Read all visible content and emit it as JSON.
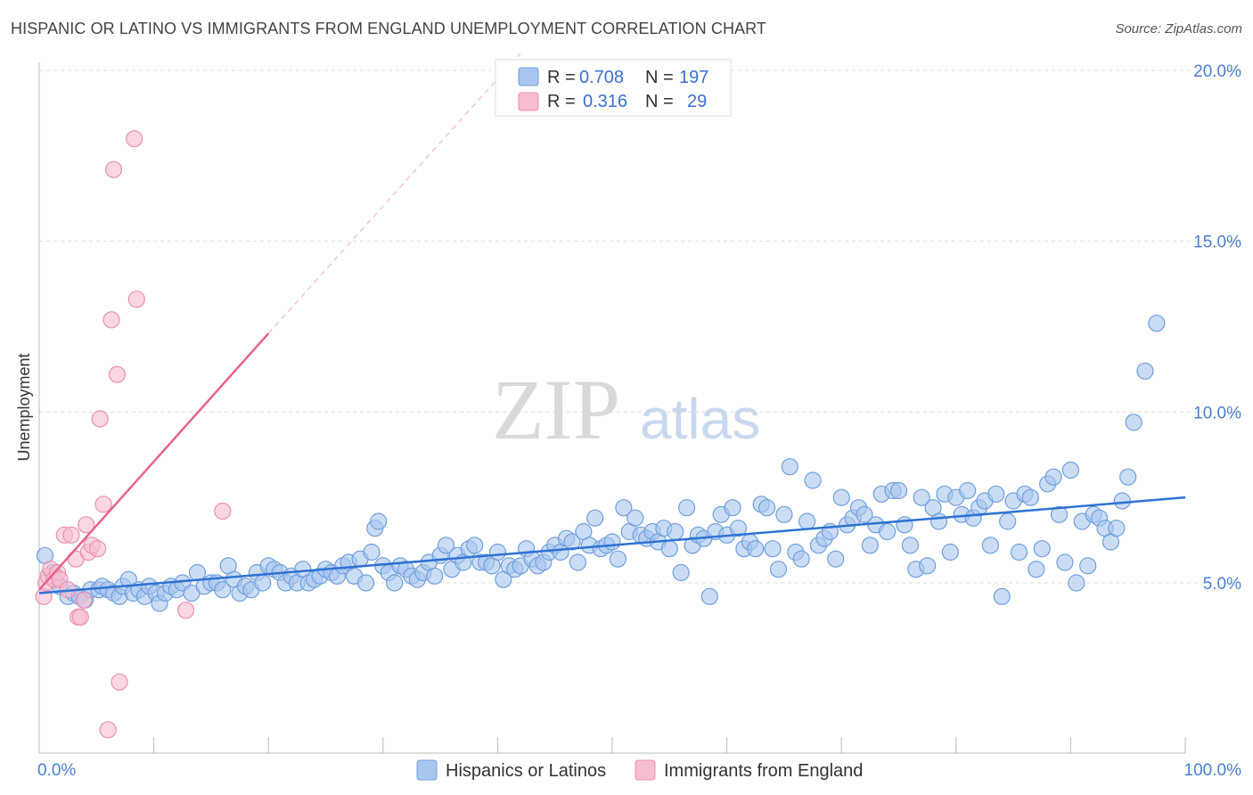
{
  "title": "HISPANIC OR LATINO VS IMMIGRANTS FROM ENGLAND UNEMPLOYMENT CORRELATION CHART",
  "source": "Source: ZipAtlas.com",
  "watermark": {
    "zip": "ZIP",
    "atlas": "atlas"
  },
  "colors": {
    "blue_fill": "#a9c7ee",
    "blue_stroke": "#6f9fdc",
    "blue_line": "#2d72d2",
    "pink_fill": "#f6bcd0",
    "pink_stroke": "#ea8fb0",
    "pink_line": "#e8628f",
    "tick_text": "#4a7fd0",
    "grid": "#dddddd"
  },
  "legend": {
    "rows": [
      {
        "r_label": "R =",
        "r_value": "0.708",
        "n_label": "N =",
        "n_value": "197"
      },
      {
        "r_label": "R =",
        "r_value": "0.316",
        "n_label": "N =",
        "n_value": "29"
      }
    ]
  },
  "chart_data": {
    "type": "scatter",
    "title": "HISPANIC OR LATINO VS IMMIGRANTS FROM ENGLAND UNEMPLOYMENT CORRELATION CHART",
    "xlabel": "",
    "ylabel": "Unemployment",
    "x_tick_labels": [
      "0.0%",
      "100.0%"
    ],
    "y_tick_labels": [
      "5.0%",
      "10.0%",
      "15.0%",
      "20.0%"
    ],
    "y_ticks": [
      5,
      10,
      15,
      20
    ],
    "xlim": [
      0,
      100
    ],
    "ylim": [
      0,
      20.5
    ],
    "grid": true,
    "legend_position": "top-center",
    "series": [
      {
        "name": "Hispanics or Latinos",
        "R": 0.708,
        "N": 197,
        "trend": {
          "x": [
            0,
            100
          ],
          "y": [
            4.7,
            7.5
          ]
        },
        "points": [
          [
            0.5,
            5.8
          ],
          [
            1.2,
            5.3
          ],
          [
            1.8,
            4.9
          ],
          [
            2.5,
            4.6
          ],
          [
            3,
            4.7
          ],
          [
            3.5,
            4.6
          ],
          [
            4,
            4.5
          ],
          [
            4.5,
            4.8
          ],
          [
            5.2,
            4.8
          ],
          [
            5.5,
            4.9
          ],
          [
            6,
            4.8
          ],
          [
            6.5,
            4.7
          ],
          [
            7,
            4.6
          ],
          [
            7.3,
            4.9
          ],
          [
            7.8,
            5.1
          ],
          [
            8.2,
            4.7
          ],
          [
            8.7,
            4.8
          ],
          [
            9.2,
            4.6
          ],
          [
            9.6,
            4.9
          ],
          [
            10.2,
            4.7
          ],
          [
            10.5,
            4.4
          ],
          [
            11,
            4.7
          ],
          [
            11.5,
            4.9
          ],
          [
            12,
            4.8
          ],
          [
            12.5,
            5.0
          ],
          [
            13.3,
            4.7
          ],
          [
            13.8,
            5.3
          ],
          [
            14.4,
            4.9
          ],
          [
            15,
            5.0
          ],
          [
            15.5,
            5.0
          ],
          [
            16,
            4.8
          ],
          [
            16.5,
            5.5
          ],
          [
            17,
            5.1
          ],
          [
            17.5,
            4.7
          ],
          [
            18,
            4.9
          ],
          [
            18.5,
            4.8
          ],
          [
            19,
            5.3
          ],
          [
            19.5,
            5.0
          ],
          [
            20,
            5.5
          ],
          [
            20.5,
            5.4
          ],
          [
            21,
            5.3
          ],
          [
            21.5,
            5.0
          ],
          [
            22,
            5.2
          ],
          [
            22.5,
            5.0
          ],
          [
            23,
            5.4
          ],
          [
            23.5,
            5.0
          ],
          [
            24,
            5.1
          ],
          [
            24.5,
            5.2
          ],
          [
            25,
            5.4
          ],
          [
            25.5,
            5.3
          ],
          [
            26,
            5.2
          ],
          [
            26.5,
            5.5
          ],
          [
            27,
            5.6
          ],
          [
            27.5,
            5.2
          ],
          [
            28,
            5.7
          ],
          [
            28.5,
            5.0
          ],
          [
            29,
            5.9
          ],
          [
            29.3,
            6.6
          ],
          [
            29.6,
            6.8
          ],
          [
            30,
            5.5
          ],
          [
            30.5,
            5.3
          ],
          [
            31,
            5.0
          ],
          [
            31.5,
            5.5
          ],
          [
            32,
            5.4
          ],
          [
            32.5,
            5.2
          ],
          [
            33,
            5.1
          ],
          [
            33.5,
            5.3
          ],
          [
            34,
            5.6
          ],
          [
            34.5,
            5.2
          ],
          [
            35,
            5.8
          ],
          [
            35.5,
            6.1
          ],
          [
            36,
            5.4
          ],
          [
            36.5,
            5.8
          ],
          [
            37,
            5.6
          ],
          [
            37.5,
            6.0
          ],
          [
            38,
            6.1
          ],
          [
            38.5,
            5.6
          ],
          [
            39,
            5.6
          ],
          [
            39.5,
            5.5
          ],
          [
            40,
            5.9
          ],
          [
            40.5,
            5.1
          ],
          [
            41,
            5.5
          ],
          [
            41.5,
            5.4
          ],
          [
            42,
            5.5
          ],
          [
            42.5,
            6.0
          ],
          [
            43,
            5.7
          ],
          [
            43.5,
            5.5
          ],
          [
            44,
            5.6
          ],
          [
            44.5,
            5.9
          ],
          [
            45,
            6.1
          ],
          [
            45.5,
            5.9
          ],
          [
            46,
            6.3
          ],
          [
            46.5,
            6.2
          ],
          [
            47,
            5.6
          ],
          [
            47.5,
            6.5
          ],
          [
            48,
            6.1
          ],
          [
            48.5,
            6.9
          ],
          [
            49,
            6.0
          ],
          [
            49.5,
            6.1
          ],
          [
            50,
            6.2
          ],
          [
            50.5,
            5.7
          ],
          [
            51,
            7.2
          ],
          [
            51.5,
            6.5
          ],
          [
            52,
            6.9
          ],
          [
            52.5,
            6.4
          ],
          [
            53,
            6.3
          ],
          [
            53.5,
            6.5
          ],
          [
            54,
            6.2
          ],
          [
            54.5,
            6.6
          ],
          [
            55,
            6.0
          ],
          [
            55.5,
            6.5
          ],
          [
            56,
            5.3
          ],
          [
            56.5,
            7.2
          ],
          [
            57,
            6.1
          ],
          [
            57.5,
            6.4
          ],
          [
            58,
            6.3
          ],
          [
            58.5,
            4.6
          ],
          [
            59,
            6.5
          ],
          [
            59.5,
            7.0
          ],
          [
            60,
            6.4
          ],
          [
            60.5,
            7.2
          ],
          [
            61,
            6.6
          ],
          [
            61.5,
            6.0
          ],
          [
            62,
            6.2
          ],
          [
            62.5,
            6.0
          ],
          [
            63,
            7.3
          ],
          [
            63.5,
            7.2
          ],
          [
            64,
            6.0
          ],
          [
            64.5,
            5.4
          ],
          [
            65,
            7.0
          ],
          [
            65.5,
            8.4
          ],
          [
            66,
            5.9
          ],
          [
            66.5,
            5.7
          ],
          [
            67,
            6.8
          ],
          [
            67.5,
            8.0
          ],
          [
            68,
            6.1
          ],
          [
            68.5,
            6.3
          ],
          [
            69,
            6.5
          ],
          [
            69.5,
            5.7
          ],
          [
            70,
            7.5
          ],
          [
            70.5,
            6.7
          ],
          [
            71,
            6.9
          ],
          [
            71.5,
            7.2
          ],
          [
            72,
            7.0
          ],
          [
            72.5,
            6.1
          ],
          [
            73,
            6.7
          ],
          [
            73.5,
            7.6
          ],
          [
            74,
            6.5
          ],
          [
            74.5,
            7.7
          ],
          [
            75,
            7.7
          ],
          [
            75.5,
            6.7
          ],
          [
            76,
            6.1
          ],
          [
            76.5,
            5.4
          ],
          [
            77,
            7.5
          ],
          [
            77.5,
            5.5
          ],
          [
            78,
            7.2
          ],
          [
            78.5,
            6.8
          ],
          [
            79,
            7.6
          ],
          [
            79.5,
            5.9
          ],
          [
            80,
            7.5
          ],
          [
            80.5,
            7.0
          ],
          [
            81,
            7.7
          ],
          [
            81.5,
            6.9
          ],
          [
            82,
            7.2
          ],
          [
            82.5,
            7.4
          ],
          [
            83,
            6.1
          ],
          [
            83.5,
            7.6
          ],
          [
            84,
            4.6
          ],
          [
            84.5,
            6.8
          ],
          [
            85,
            7.4
          ],
          [
            85.5,
            5.9
          ],
          [
            86,
            7.6
          ],
          [
            86.5,
            7.5
          ],
          [
            87,
            5.4
          ],
          [
            87.5,
            6.0
          ],
          [
            88,
            7.9
          ],
          [
            88.5,
            8.1
          ],
          [
            89,
            7.0
          ],
          [
            89.5,
            5.6
          ],
          [
            90,
            8.3
          ],
          [
            90.5,
            5.0
          ],
          [
            91,
            6.8
          ],
          [
            91.5,
            5.5
          ],
          [
            92,
            7.0
          ],
          [
            92.5,
            6.9
          ],
          [
            93,
            6.6
          ],
          [
            93.5,
            6.2
          ],
          [
            94,
            6.6
          ],
          [
            94.5,
            7.4
          ],
          [
            95,
            8.1
          ],
          [
            95.5,
            9.7
          ],
          [
            96.5,
            11.2
          ],
          [
            97.5,
            12.6
          ]
        ]
      },
      {
        "name": "Immigrants from England",
        "R": 0.316,
        "N": 29,
        "trend": {
          "x": [
            0,
            20
          ],
          "y": [
            4.8,
            12.3
          ],
          "dashed_extension_to": [
            42,
            20.5
          ]
        },
        "points": [
          [
            0.4,
            4.6
          ],
          [
            0.6,
            5.0
          ],
          [
            0.8,
            5.2
          ],
          [
            1.0,
            5.4
          ],
          [
            1.3,
            5.1
          ],
          [
            1.6,
            5.3
          ],
          [
            1.8,
            5.1
          ],
          [
            2.2,
            6.4
          ],
          [
            2.5,
            4.8
          ],
          [
            2.8,
            6.4
          ],
          [
            3.2,
            5.7
          ],
          [
            3.4,
            4.0
          ],
          [
            3.6,
            4.0
          ],
          [
            3.9,
            4.5
          ],
          [
            4.1,
            6.7
          ],
          [
            4.3,
            5.9
          ],
          [
            4.6,
            6.1
          ],
          [
            5.1,
            6.0
          ],
          [
            5.3,
            9.8
          ],
          [
            5.6,
            7.3
          ],
          [
            6.0,
            0.7
          ],
          [
            6.3,
            12.7
          ],
          [
            6.5,
            17.1
          ],
          [
            6.8,
            11.1
          ],
          [
            7.0,
            2.1
          ],
          [
            8.3,
            18.0
          ],
          [
            8.5,
            13.3
          ],
          [
            12.8,
            4.2
          ],
          [
            16.0,
            7.1
          ]
        ]
      }
    ]
  },
  "bottom_legend": [
    "Hispanics or Latinos",
    "Immigrants from England"
  ]
}
